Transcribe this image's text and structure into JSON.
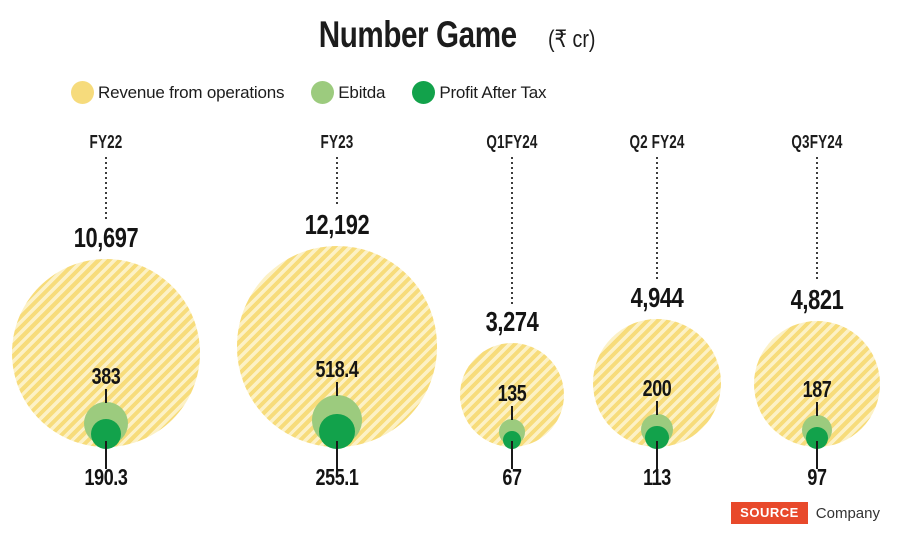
{
  "title": {
    "main": "Number Game",
    "unit": "(₹ cr)"
  },
  "source": {
    "badge": "SOURCE",
    "company": "Company",
    "badge_color": "#E8492B"
  },
  "chart_data": {
    "type": "bubble",
    "title": "Number Game",
    "unit": "₹ cr",
    "categories": [
      "FY22",
      "FY23",
      "Q1FY24",
      "Q2 FY24",
      "Q3FY24"
    ],
    "series": [
      {
        "name": "Revenue from operations",
        "values": [
          10697,
          12192,
          3274,
          4944,
          4821
        ],
        "labels": [
          "10,697",
          "12,192",
          "3,274",
          "4,944",
          "4,821"
        ],
        "color": "#F6DB7C",
        "fill": "hatched"
      },
      {
        "name": "Ebitda",
        "values": [
          383,
          518.4,
          135,
          200,
          187
        ],
        "labels": [
          "383",
          "518.4",
          "135",
          "200",
          "187"
        ],
        "color": "#9CCB7E",
        "fill": "solid"
      },
      {
        "name": "Profit After Tax",
        "values": [
          190.3,
          255.1,
          67,
          113,
          97
        ],
        "labels": [
          "190.3",
          "255.1",
          "67",
          "113",
          "97"
        ],
        "color": "#12A24B",
        "fill": "solid"
      }
    ],
    "colors": {
      "revenue_hatch_dark": "#F7DC7B",
      "revenue_hatch_light": "#FCF1C6",
      "ebitda": "#9CCB7E",
      "pat": "#12A24B",
      "text": "#1a1a1a"
    },
    "layout_hints": {
      "bubbles_bottom_aligned": true,
      "size_by": "sqrt(value)",
      "legend_position": "top",
      "grid": false
    }
  }
}
